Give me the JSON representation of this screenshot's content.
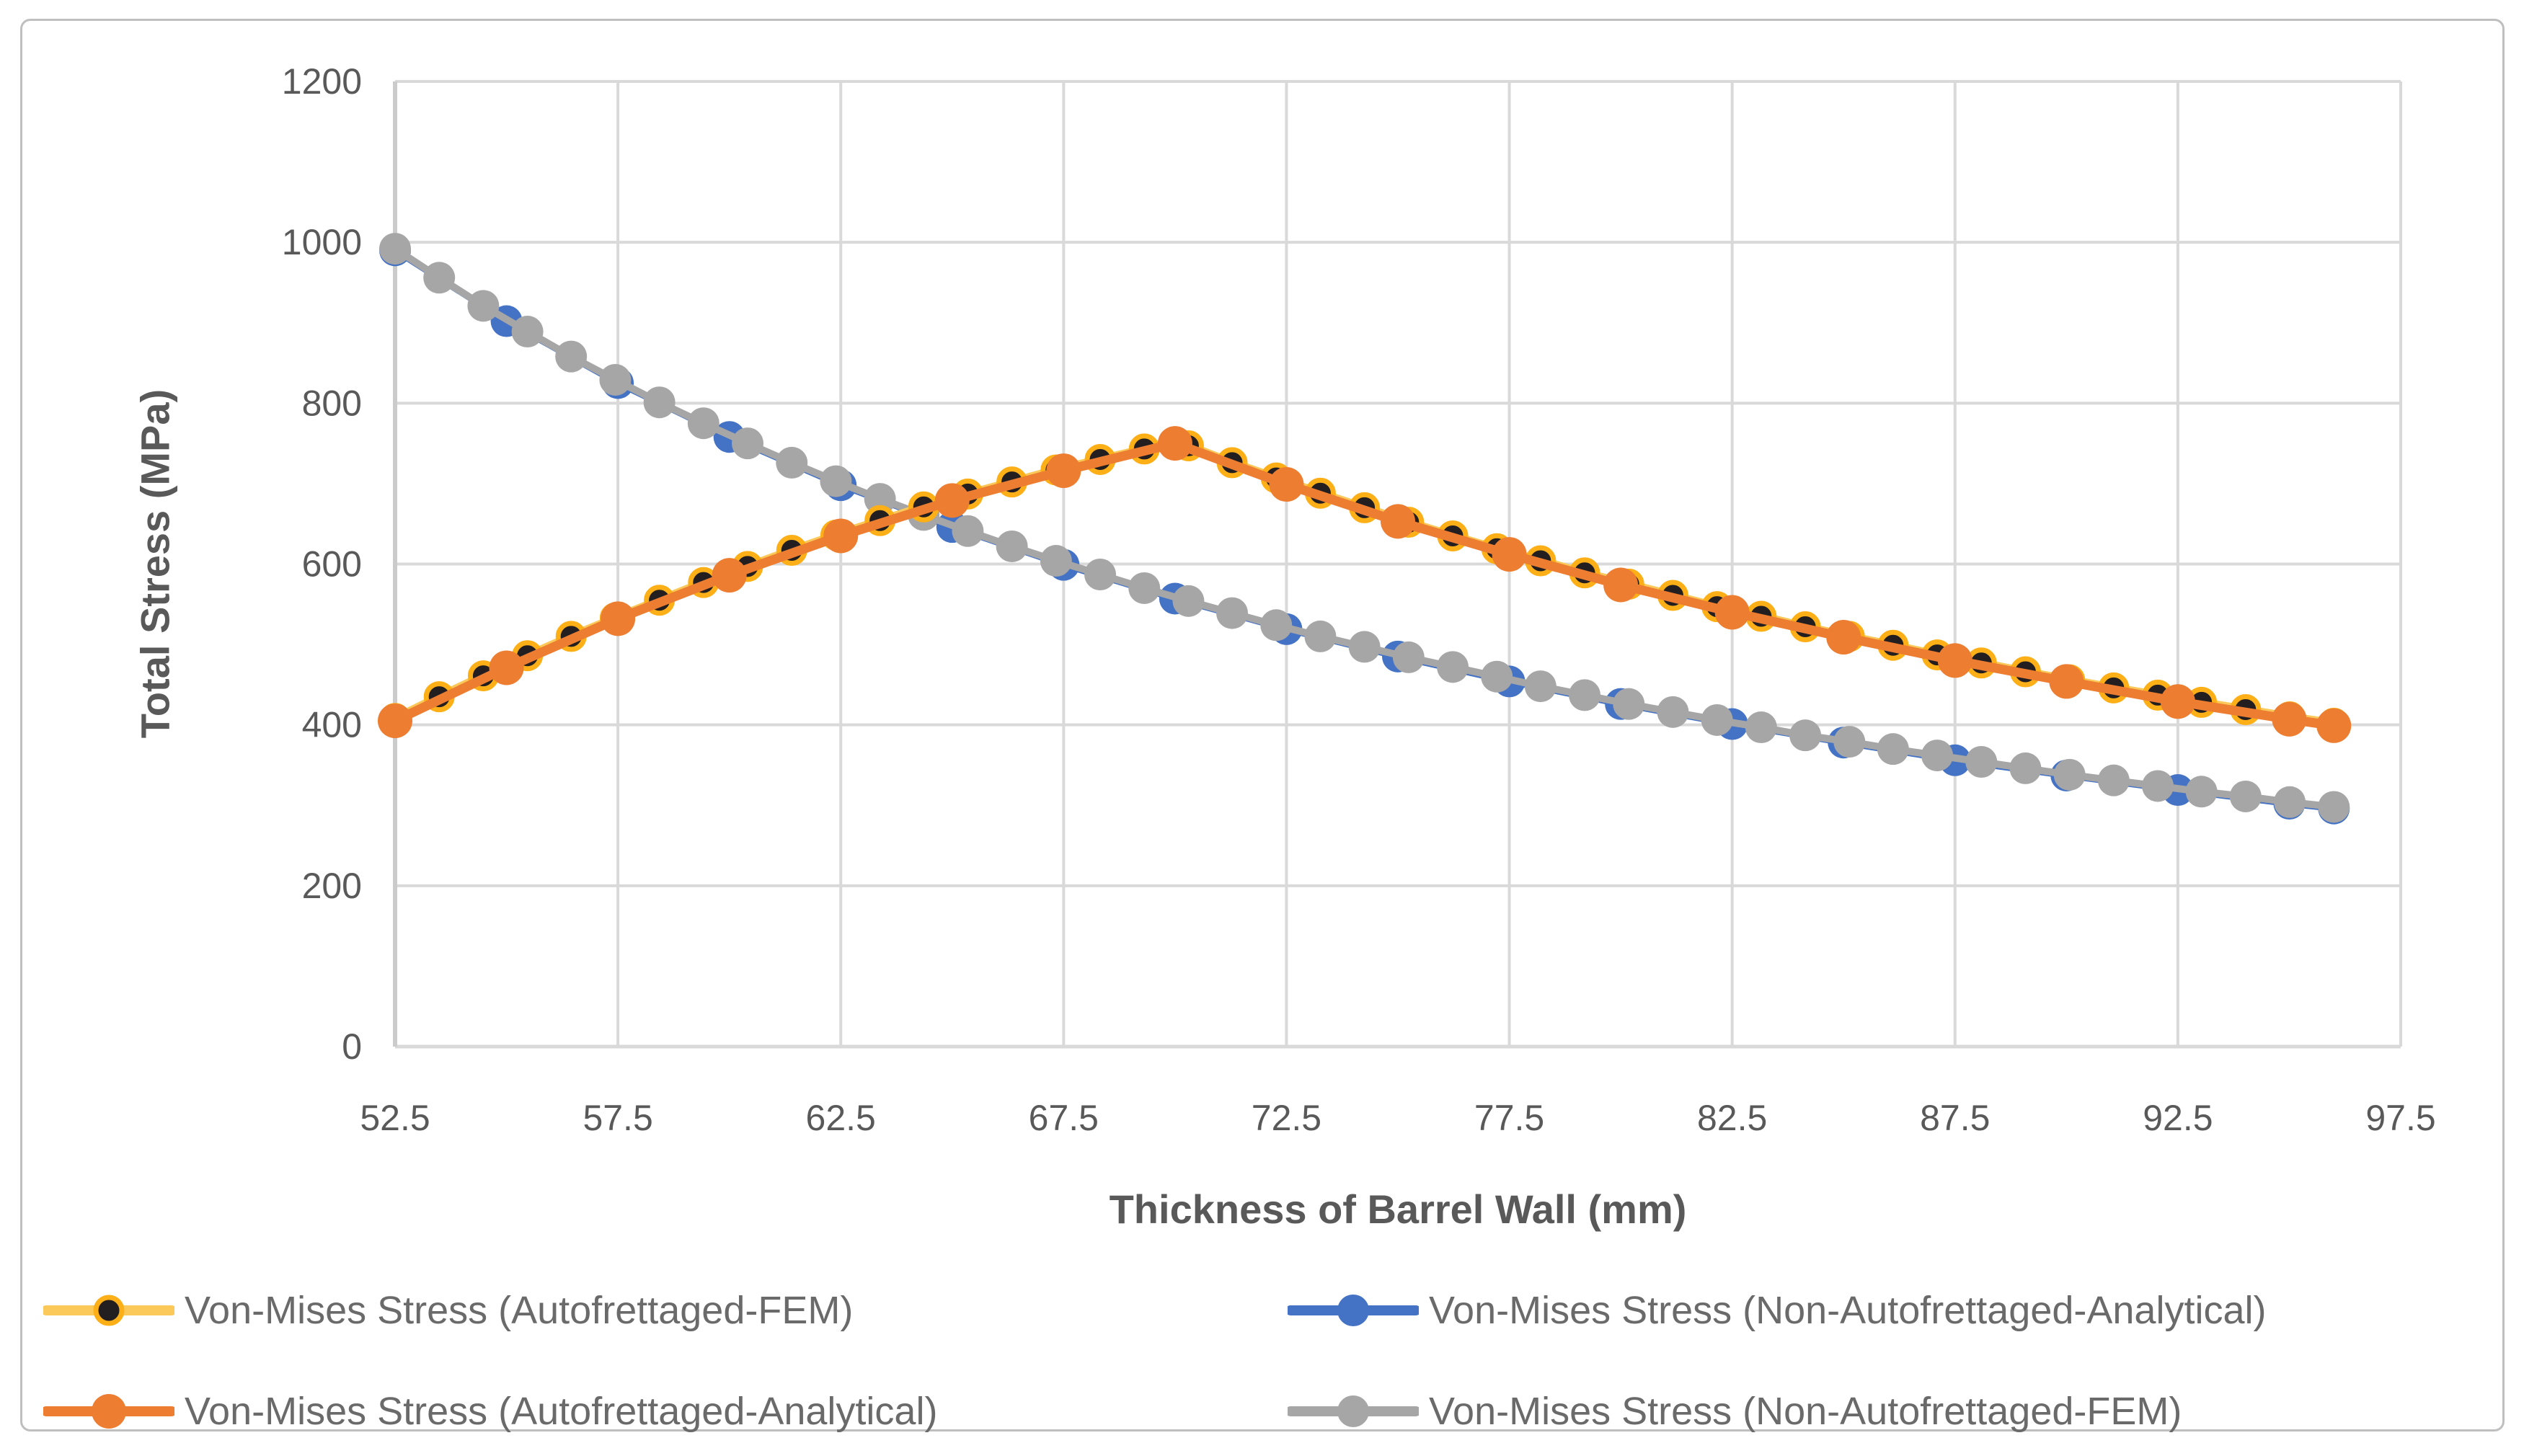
{
  "figure": {
    "background": "#FFFFFF",
    "border_color": "#BFBFBF"
  },
  "axes": {
    "grid_color": "#D9D9D9",
    "axis_line_color": "#CBCBCB",
    "tick_label_color": "#595959",
    "title_color": "#595959"
  },
  "chart_data": {
    "type": "line",
    "title": "",
    "xlabel": "Thickness of Barrel Wall (mm)",
    "ylabel": "Total Stress (MPa)",
    "xlim": [
      52.5,
      97.5
    ],
    "ylim": [
      0,
      1200
    ],
    "x_ticks": [
      52.5,
      57.5,
      62.5,
      67.5,
      72.5,
      77.5,
      82.5,
      87.5,
      92.5,
      97.5
    ],
    "y_ticks": [
      0,
      200,
      400,
      600,
      800,
      1000,
      1200
    ],
    "grid": true,
    "legend_position": "bottom-two-columns",
    "draw_order": [
      1,
      3,
      0,
      2
    ],
    "series": [
      {
        "key": "autofrettaged-fem",
        "name": "Von-Mises Stress (Autofrettaged-FEM)",
        "line_color": "#FBC95A",
        "line_width": 12,
        "marker": {
          "fill": "#231F20",
          "stroke": "#FCAF17",
          "stroke_width": 7,
          "radius": 18
        },
        "x": [
          52.5,
          53.49,
          54.48,
          55.47,
          56.45,
          57.44,
          58.43,
          59.42,
          60.41,
          61.4,
          62.39,
          63.38,
          64.36,
          65.35,
          66.34,
          67.33,
          68.32,
          69.31,
          70.3,
          71.28,
          72.27,
          73.26,
          74.25,
          75.24,
          76.23,
          77.22,
          78.2,
          79.19,
          80.18,
          81.17,
          82.16,
          83.15,
          84.14,
          85.13,
          86.11,
          87.1,
          88.09,
          89.08,
          90.07,
          91.06,
          92.05,
          93.03,
          94.02,
          95.01,
          96.0
        ],
        "y": [
          408,
          435,
          461,
          486,
          510,
          533,
          555,
          577,
          597,
          617,
          636,
          654,
          671,
          687,
          702,
          717,
          730,
          743,
          747,
          726,
          707,
          688,
          670,
          652,
          635,
          619,
          604,
          589,
          575,
          561,
          547,
          535,
          522,
          510,
          499,
          487,
          477,
          466,
          456,
          446,
          437,
          428,
          419,
          410,
          402
        ]
      },
      {
        "key": "non-autofrettaged-analytical",
        "name": "Von-Mises Stress (Non-Autofrettaged-Analytical)",
        "line_color": "#4472C4",
        "line_width": 9,
        "marker": {
          "fill": "#4472C4",
          "stroke": "none",
          "stroke_width": 0,
          "radius": 22
        },
        "x": [
          52.5,
          55,
          57.5,
          60,
          62.5,
          65,
          67.5,
          70,
          72.5,
          75,
          77.5,
          80,
          82.5,
          85,
          87.5,
          90,
          92.5,
          95,
          96
        ],
        "y": [
          990,
          902,
          825,
          758,
          698,
          646,
          599,
          557,
          519,
          485,
          454,
          426,
          401,
          378,
          356,
          337,
          319,
          302,
          296
        ]
      },
      {
        "key": "autofrettaged-analytical",
        "name": "Von-Mises Stress (Autofrettaged-Analytical)",
        "line_color": "#ED7D31",
        "line_width": 13,
        "marker": {
          "fill": "#ED7D31",
          "stroke": "none",
          "stroke_width": 0,
          "radius": 24
        },
        "x": [
          52.5,
          55,
          57.5,
          60,
          62.5,
          65,
          67.5,
          70,
          72.5,
          75,
          77.5,
          80,
          82.5,
          85,
          87.5,
          90,
          92.5,
          95,
          96
        ],
        "y": [
          405,
          471,
          532,
          586,
          635,
          679,
          716,
          750,
          699,
          653,
          612,
          574,
          540,
          509,
          480,
          454,
          429,
          407,
          399
        ]
      },
      {
        "key": "non-autofrettaged-fem",
        "name": "Von-Mises Stress (Non-Autofrettaged-FEM)",
        "line_color": "#A6A6A6",
        "line_width": 10,
        "marker": {
          "fill": "#A6A6A6",
          "stroke": "none",
          "stroke_width": 0,
          "radius": 22
        },
        "x": [
          52.5,
          53.49,
          54.48,
          55.47,
          56.45,
          57.44,
          58.43,
          59.42,
          60.41,
          61.4,
          62.39,
          63.38,
          64.36,
          65.35,
          66.34,
          67.33,
          68.32,
          69.31,
          70.3,
          71.28,
          72.27,
          73.26,
          74.25,
          75.24,
          76.23,
          77.22,
          78.2,
          79.19,
          80.18,
          81.17,
          82.16,
          83.15,
          84.14,
          85.13,
          86.11,
          87.1,
          88.09,
          89.08,
          90.07,
          91.06,
          92.05,
          93.03,
          94.02,
          95.01,
          96.0
        ],
        "y": [
          992,
          956,
          921,
          889,
          858,
          829,
          801,
          775,
          750,
          726,
          703,
          681,
          661,
          641,
          622,
          604,
          587,
          570,
          554,
          539,
          524,
          510,
          497,
          484,
          472,
          460,
          448,
          437,
          426,
          416,
          406,
          397,
          387,
          379,
          370,
          362,
          354,
          346,
          338,
          331,
          324,
          317,
          311,
          304,
          298
        ]
      }
    ]
  },
  "legend": {
    "rows": 2,
    "columns": 2,
    "items": [
      {
        "series_index": 0
      },
      {
        "series_index": 1
      },
      {
        "series_index": 2
      },
      {
        "series_index": 3
      }
    ]
  }
}
